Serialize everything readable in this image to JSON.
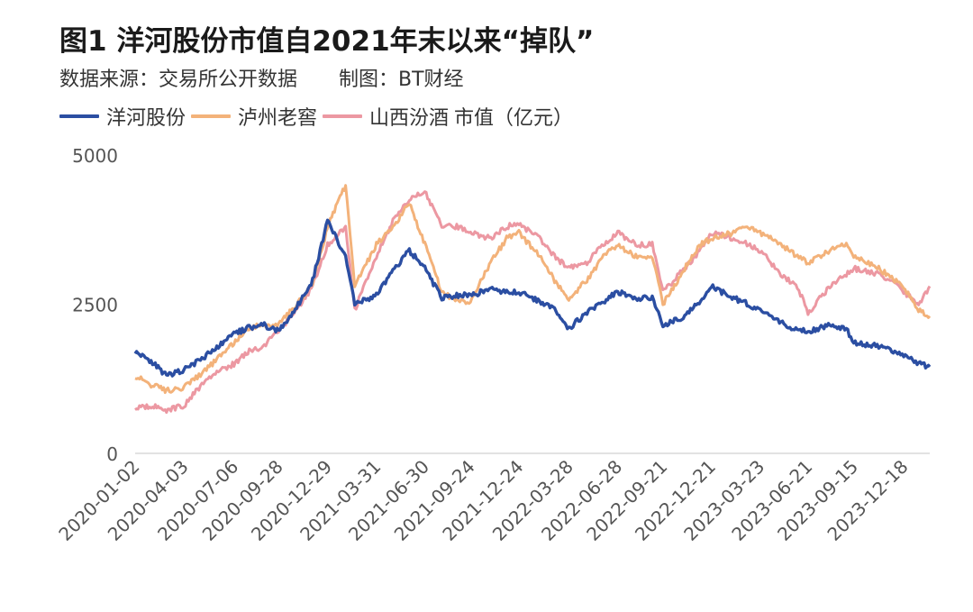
{
  "header": {
    "title": "图1 洋河股份市值自2021年末以来“掉队”",
    "source_label": "数据来源：交易所公开数据",
    "credit_label": "制图：BT财经"
  },
  "legend": {
    "unit": "市值（亿元）"
  },
  "colors": {
    "yanghe": "#2b4ea2",
    "luzhou": "#f3b27a",
    "fenjiu": "#ec98a2",
    "axis": "#d9d9d9",
    "tick_text": "#555555"
  },
  "chart_data": {
    "type": "line",
    "title": "图1 洋河股份市值自2021年末以来“掉队”",
    "xlabel": "",
    "ylabel": "市值（亿元）",
    "ylim": [
      0,
      5000
    ],
    "yticks": [
      0,
      2500,
      5000
    ],
    "grid": false,
    "legend_position": "top-left",
    "x_tick_labels": [
      "2020-01-02",
      "2020-04-03",
      "2020-07-06",
      "2020-09-28",
      "2020-12-29",
      "2021-03-31",
      "2021-06-30",
      "2021-09-24",
      "2021-12-24",
      "2022-03-28",
      "2022-06-28",
      "2022-09-21",
      "2022-12-21",
      "2023-03-23",
      "2023-06-21",
      "2023-09-15",
      "2023-12-18"
    ],
    "x": [
      "2020-01-02",
      "2020-02-01",
      "2020-03-01",
      "2020-04-03",
      "2020-05-01",
      "2020-06-01",
      "2020-07-06",
      "2020-08-01",
      "2020-09-01",
      "2020-09-28",
      "2020-11-01",
      "2020-12-01",
      "2020-12-29",
      "2021-02-01",
      "2021-02-18",
      "2021-03-31",
      "2021-05-01",
      "2021-06-01",
      "2021-06-30",
      "2021-08-01",
      "2021-09-01",
      "2021-09-24",
      "2021-11-01",
      "2021-12-01",
      "2021-12-24",
      "2022-02-01",
      "2022-03-01",
      "2022-03-28",
      "2022-05-01",
      "2022-06-01",
      "2022-06-28",
      "2022-08-01",
      "2022-09-01",
      "2022-09-21",
      "2022-11-01",
      "2022-12-01",
      "2022-12-21",
      "2023-02-01",
      "2023-03-01",
      "2023-03-23",
      "2023-05-01",
      "2023-06-01",
      "2023-06-21",
      "2023-08-01",
      "2023-09-01",
      "2023-09-15",
      "2023-11-01",
      "2023-12-01",
      "2023-12-18",
      "2024-01-15",
      "2024-02-05"
    ],
    "series": [
      {
        "name": "洋河股份",
        "color": "#2b4ea2",
        "values": [
          1700,
          1550,
          1300,
          1400,
          1550,
          1750,
          2000,
          2100,
          2150,
          2050,
          2450,
          2900,
          3900,
          3300,
          2500,
          2650,
          3050,
          3400,
          3100,
          2600,
          2650,
          2650,
          2750,
          2700,
          2700,
          2550,
          2400,
          2100,
          2350,
          2550,
          2700,
          2600,
          2600,
          2150,
          2300,
          2550,
          2800,
          2600,
          2500,
          2400,
          2200,
          2050,
          2050,
          2150,
          2100,
          1850,
          1800,
          1700,
          1650,
          1500,
          1450
        ]
      },
      {
        "name": "泸州老窖",
        "color": "#f3b27a",
        "values": [
          1300,
          1150,
          1050,
          1100,
          1300,
          1550,
          1850,
          2100,
          2150,
          2150,
          2500,
          2850,
          3800,
          4500,
          2800,
          3500,
          3800,
          4200,
          3500,
          2700,
          2550,
          2550,
          3200,
          3600,
          3700,
          3300,
          2900,
          2600,
          2900,
          3300,
          3500,
          3300,
          3300,
          2500,
          3100,
          3500,
          3600,
          3700,
          3800,
          3700,
          3500,
          3300,
          3200,
          3400,
          3500,
          3300,
          3100,
          2900,
          2800,
          2400,
          2300
        ]
      },
      {
        "name": "山西汾酒",
        "color": "#ec98a2",
        "values": [
          750,
          800,
          730,
          800,
          1100,
          1350,
          1500,
          1700,
          1800,
          2050,
          2400,
          2800,
          3500,
          3800,
          2400,
          3300,
          3900,
          4250,
          4400,
          3800,
          3800,
          3700,
          3600,
          3800,
          3850,
          3600,
          3300,
          3100,
          3200,
          3500,
          3700,
          3500,
          3500,
          2700,
          3100,
          3400,
          3700,
          3600,
          3500,
          3400,
          3000,
          2800,
          2350,
          2800,
          3000,
          3100,
          3000,
          2850,
          2700,
          2500,
          2800
        ]
      }
    ]
  }
}
